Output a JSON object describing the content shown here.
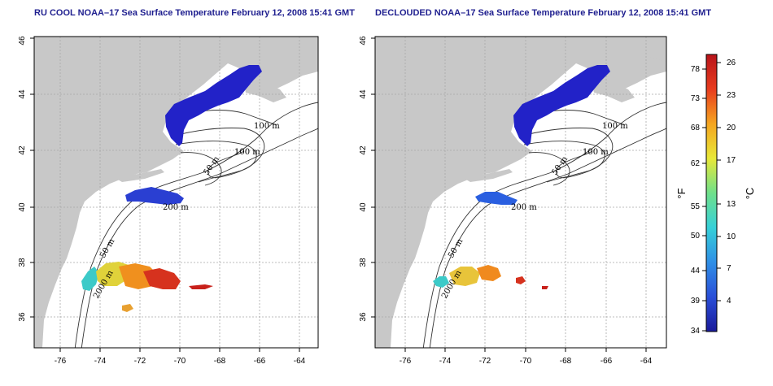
{
  "panels": [
    {
      "title": "RU COOL NOAA–17 Sea Surface Temperature February 12, 2008 15:41 GMT",
      "contour_labels": [
        "100 m",
        "100 m",
        "50 m",
        "200 m",
        "50 m",
        "2000 m"
      ]
    },
    {
      "title": "DECLOUDED NOAA–17 Sea Surface Temperature February 12, 2008 15:41 GMT",
      "contour_labels": [
        "100 m",
        "100 m",
        "50 m",
        "200 m",
        "50 m",
        "2000 m"
      ]
    }
  ],
  "axes": {
    "x_ticks": [
      "-76",
      "-74",
      "-72",
      "-70",
      "-68",
      "-66",
      "-64"
    ],
    "y_ticks": [
      "36",
      "38",
      "40",
      "42",
      "44",
      "46"
    ]
  },
  "colorbar": {
    "fahrenheit_unit": "°F",
    "celsius_unit": "°C",
    "fahrenheit_ticks": [
      "78",
      "73",
      "68",
      "62",
      "55",
      "50",
      "44",
      "39",
      "34"
    ],
    "celsius_ticks": [
      "26",
      "23",
      "20",
      "17",
      "13",
      "10",
      "7",
      "4"
    ],
    "scale_colors": [
      "#1a1a9a",
      "#2a4fd8",
      "#2f8fe6",
      "#36d0d8",
      "#6fe08a",
      "#e8e838",
      "#f5a520",
      "#e83c1e",
      "#b8141a"
    ]
  },
  "colors": {
    "land": "#c8c8c8",
    "water": "#ffffff",
    "grid": "#a8a8a8",
    "title": "#1f1f8f"
  }
}
